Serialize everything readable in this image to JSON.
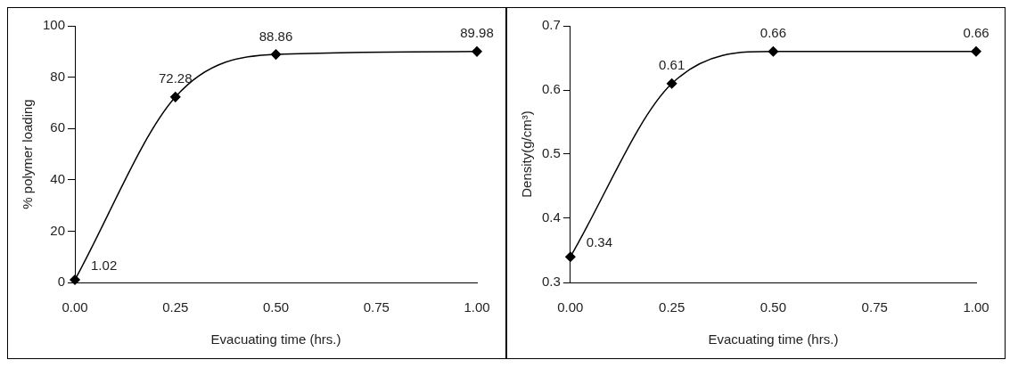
{
  "chart_data": [
    {
      "type": "line",
      "xlabel": "Evacuating time (hrs.)",
      "ylabel": "% polymer loading",
      "x": [
        0,
        0.25,
        0.5,
        1
      ],
      "values": [
        1.02,
        72.28,
        88.86,
        89.98
      ],
      "color": "#000000",
      "marker": "diamond",
      "data_labels": true,
      "grid": false,
      "xlim": [
        0,
        1
      ],
      "xticks": [
        {
          "value": 0,
          "label": "0.00"
        },
        {
          "value": 0.25,
          "label": "0.25"
        },
        {
          "value": 0.5,
          "label": "0.50"
        },
        {
          "value": 0.75,
          "label": "0.75"
        },
        {
          "value": 1,
          "label": "1.00"
        }
      ],
      "ylim": [
        0,
        100
      ],
      "yticks": [
        0,
        20,
        40,
        60,
        80,
        100
      ]
    },
    {
      "type": "line",
      "xlabel": "Evacuating time (hrs.)",
      "ylabel": "Density(g/cm³)",
      "x": [
        0,
        0.25,
        0.5,
        1
      ],
      "values": [
        0.34,
        0.61,
        0.66,
        0.66
      ],
      "color": "#000000",
      "marker": "diamond",
      "data_labels": true,
      "grid": false,
      "xlim": [
        0,
        1
      ],
      "xticks": [
        {
          "value": 0,
          "label": "0.00"
        },
        {
          "value": 0.25,
          "label": "0.25"
        },
        {
          "value": 0.5,
          "label": "0.50"
        },
        {
          "value": 0.75,
          "label": "0.75"
        },
        {
          "value": 1,
          "label": "1.00"
        }
      ],
      "ylim": [
        0.3,
        0.7
      ],
      "yticks": [
        0.3,
        0.4,
        0.5,
        0.6,
        0.7
      ]
    }
  ]
}
